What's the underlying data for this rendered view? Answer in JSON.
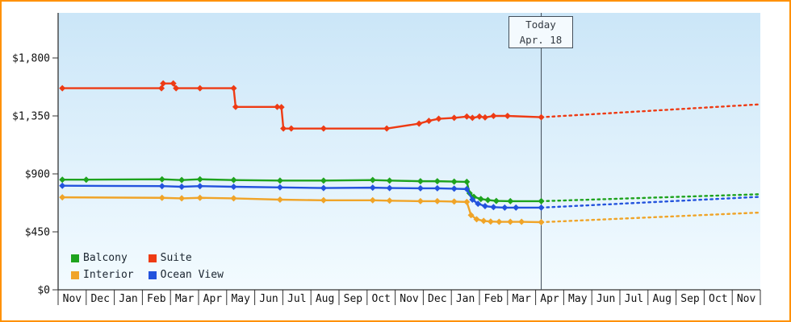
{
  "page": {
    "frame_border_color": "#ff9100",
    "plot_bg_top": "#cbe6f8",
    "plot_bg_bottom": "#f3fbff",
    "axis_color": "#333333",
    "text_color": "#111111",
    "today_line_color": "#3f4a55"
  },
  "today_marker": {
    "line1": "Today",
    "line2": "Apr. 18"
  },
  "legend": {
    "items": [
      {
        "label": "Balcony",
        "color": "#1ea31e"
      },
      {
        "label": "Suite",
        "color": "#ee3b14"
      },
      {
        "label": "Interior",
        "color": "#f0a428"
      },
      {
        "label": "Ocean View",
        "color": "#2353dd"
      }
    ]
  },
  "chart_data": {
    "type": "line",
    "x_tick_labels": [
      "Nov",
      "Dec",
      "Jan",
      "Feb",
      "Mar",
      "Apr",
      "May",
      "Jun",
      "Jul",
      "Aug",
      "Sep",
      "Oct",
      "Nov",
      "Dec",
      "Jan",
      "Feb",
      "Mar",
      "Apr",
      "May",
      "Jun",
      "Jul",
      "Aug",
      "Sep",
      "Oct",
      "Nov"
    ],
    "y_ticks": [
      {
        "label": "$1,800",
        "value": 1800
      },
      {
        "label": "$1,350",
        "value": 1350
      },
      {
        "label": "$900",
        "value": 900
      },
      {
        "label": "$450",
        "value": 450
      },
      {
        "label": "$0",
        "value": 0
      }
    ],
    "ylim": [
      0,
      2150
    ],
    "grid": false,
    "legend_position": "bottom-left-inside",
    "today_month_position": 17.2,
    "series": [
      {
        "name": "Balcony",
        "color": "#1ea31e",
        "solid": [
          [
            0.15,
            855
          ],
          [
            1.0,
            855
          ],
          [
            3.7,
            858
          ],
          [
            4.4,
            852
          ],
          [
            5.05,
            858
          ],
          [
            6.25,
            852
          ],
          [
            7.9,
            848
          ],
          [
            9.45,
            848
          ],
          [
            11.2,
            852
          ],
          [
            11.8,
            848
          ],
          [
            12.9,
            843
          ],
          [
            13.5,
            843
          ],
          [
            14.1,
            840
          ],
          [
            14.55,
            838
          ],
          [
            14.65,
            750
          ],
          [
            14.8,
            722
          ],
          [
            15.05,
            705
          ],
          [
            15.3,
            697
          ],
          [
            15.6,
            690
          ],
          [
            16.1,
            688
          ],
          [
            17.2,
            688
          ]
        ],
        "forecast": [
          [
            17.2,
            688
          ],
          [
            25,
            742
          ]
        ]
      },
      {
        "name": "Suite",
        "color": "#ee3b14",
        "solid": [
          [
            0.15,
            1565
          ],
          [
            3.68,
            1565
          ],
          [
            3.74,
            1602
          ],
          [
            4.1,
            1602
          ],
          [
            4.2,
            1565
          ],
          [
            5.05,
            1565
          ],
          [
            6.25,
            1565
          ],
          [
            6.32,
            1420
          ],
          [
            7.8,
            1420
          ],
          [
            7.95,
            1418
          ],
          [
            8.02,
            1252
          ],
          [
            8.3,
            1252
          ],
          [
            9.45,
            1252
          ],
          [
            11.7,
            1252
          ],
          [
            12.85,
            1290
          ],
          [
            13.2,
            1312
          ],
          [
            13.55,
            1328
          ],
          [
            14.1,
            1335
          ],
          [
            14.55,
            1345
          ],
          [
            14.75,
            1335
          ],
          [
            15.0,
            1345
          ],
          [
            15.2,
            1338
          ],
          [
            15.5,
            1350
          ],
          [
            16.0,
            1350
          ],
          [
            17.2,
            1340
          ]
        ],
        "forecast": [
          [
            17.2,
            1340
          ],
          [
            25,
            1440
          ]
        ]
      },
      {
        "name": "Interior",
        "color": "#f0a428",
        "solid": [
          [
            0.15,
            718
          ],
          [
            3.7,
            714
          ],
          [
            4.4,
            710
          ],
          [
            5.05,
            714
          ],
          [
            6.25,
            710
          ],
          [
            7.9,
            700
          ],
          [
            9.45,
            695
          ],
          [
            11.2,
            695
          ],
          [
            11.8,
            692
          ],
          [
            12.9,
            688
          ],
          [
            13.5,
            688
          ],
          [
            14.1,
            685
          ],
          [
            14.55,
            682
          ],
          [
            14.7,
            580
          ],
          [
            14.9,
            548
          ],
          [
            15.15,
            535
          ],
          [
            15.4,
            530
          ],
          [
            15.7,
            528
          ],
          [
            16.1,
            528
          ],
          [
            16.5,
            528
          ],
          [
            17.2,
            525
          ]
        ],
        "forecast": [
          [
            17.2,
            525
          ],
          [
            25,
            600
          ]
        ]
      },
      {
        "name": "Ocean View",
        "color": "#2353dd",
        "solid": [
          [
            0.15,
            808
          ],
          [
            3.7,
            805
          ],
          [
            4.4,
            800
          ],
          [
            5.05,
            805
          ],
          [
            6.25,
            800
          ],
          [
            7.9,
            795
          ],
          [
            9.45,
            790
          ],
          [
            11.2,
            793
          ],
          [
            11.8,
            790
          ],
          [
            12.9,
            788
          ],
          [
            13.5,
            788
          ],
          [
            14.1,
            785
          ],
          [
            14.55,
            782
          ],
          [
            14.75,
            700
          ],
          [
            14.95,
            668
          ],
          [
            15.2,
            650
          ],
          [
            15.5,
            642
          ],
          [
            15.9,
            638
          ],
          [
            16.3,
            638
          ],
          [
            17.2,
            638
          ]
        ],
        "forecast": [
          [
            17.2,
            638
          ],
          [
            25,
            722
          ]
        ]
      }
    ]
  }
}
